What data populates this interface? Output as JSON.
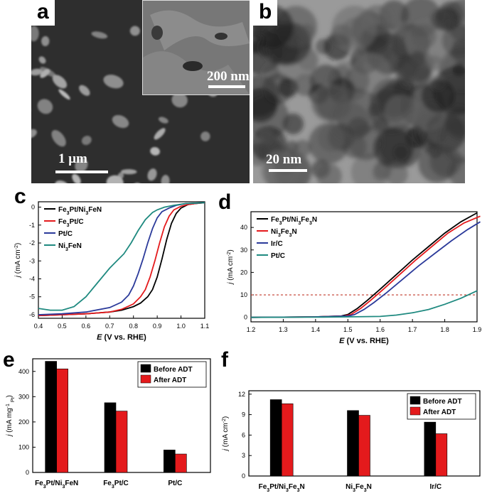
{
  "figure": {
    "panels": {
      "a": {
        "label": "a",
        "scale_main": "1 μm",
        "scale_inset": "200 nm"
      },
      "b": {
        "label": "b",
        "scale": "20 nm"
      },
      "c": {
        "label": "c"
      },
      "d": {
        "label": "d"
      },
      "e": {
        "label": "e"
      },
      "f": {
        "label": "f"
      }
    }
  },
  "chart_data": [
    {
      "id": "c",
      "type": "line",
      "xlabel": "E (V vs. RHE)",
      "ylabel": "j (mA cm⁻²)",
      "xlim": [
        0.4,
        1.1
      ],
      "ylim": [
        -6.2,
        0.3
      ],
      "xticks": [
        "0.4",
        "0.5",
        "0.6",
        "0.7",
        "0.8",
        "0.9",
        "1.0",
        "1.1"
      ],
      "yticks": [
        "0",
        "-1",
        "-2",
        "-3",
        "-4",
        "-5",
        "-6"
      ],
      "legend_position": "top-left",
      "series": [
        {
          "name": "Fe3Pt/Ni3FeN",
          "color": "#000000",
          "x": [
            0.4,
            0.5,
            0.6,
            0.7,
            0.75,
            0.8,
            0.83,
            0.86,
            0.88,
            0.9,
            0.92,
            0.94,
            0.96,
            0.98,
            1.0,
            1.03,
            1.06,
            1.1
          ],
          "y": [
            -6.05,
            -6.0,
            -5.95,
            -5.85,
            -5.75,
            -5.55,
            -5.35,
            -5.0,
            -4.6,
            -3.9,
            -2.9,
            -1.8,
            -0.9,
            -0.35,
            -0.05,
            0.15,
            0.2,
            0.25
          ]
        },
        {
          "name": "Fe3Pt/C",
          "color": "#e41a1c",
          "x": [
            0.4,
            0.5,
            0.6,
            0.7,
            0.75,
            0.8,
            0.83,
            0.85,
            0.87,
            0.89,
            0.91,
            0.93,
            0.95,
            0.97,
            1.0,
            1.03,
            1.06,
            1.1
          ],
          "y": [
            -6.05,
            -6.0,
            -5.95,
            -5.85,
            -5.7,
            -5.4,
            -5.0,
            -4.6,
            -3.9,
            -3.0,
            -2.0,
            -1.1,
            -0.5,
            -0.15,
            0.05,
            0.15,
            0.2,
            0.25
          ]
        },
        {
          "name": "Pt/C",
          "color": "#2b3a9a",
          "x": [
            0.4,
            0.5,
            0.6,
            0.7,
            0.75,
            0.78,
            0.8,
            0.82,
            0.84,
            0.86,
            0.88,
            0.9,
            0.92,
            0.95,
            0.98,
            1.02,
            1.06,
            1.1
          ],
          "y": [
            -6.0,
            -5.95,
            -5.85,
            -5.6,
            -5.3,
            -4.9,
            -4.4,
            -3.7,
            -2.9,
            -2.0,
            -1.2,
            -0.6,
            -0.25,
            -0.05,
            0.1,
            0.2,
            0.22,
            0.25
          ]
        },
        {
          "name": "Ni3FeN",
          "color": "#1f8a80",
          "x": [
            0.4,
            0.45,
            0.5,
            0.55,
            0.6,
            0.65,
            0.7,
            0.73,
            0.76,
            0.79,
            0.82,
            0.85,
            0.88,
            0.9,
            0.93,
            0.97,
            1.02,
            1.1
          ],
          "y": [
            -5.65,
            -5.75,
            -5.75,
            -5.55,
            -5.0,
            -4.2,
            -3.4,
            -3.0,
            -2.6,
            -2.0,
            -1.3,
            -0.7,
            -0.3,
            -0.15,
            0.0,
            0.1,
            0.2,
            0.25
          ]
        }
      ]
    },
    {
      "id": "d",
      "type": "line",
      "xlabel": "E (V vs. RHE)",
      "ylabel": "j (mA cm⁻²)",
      "xlim": [
        1.2,
        1.9
      ],
      "ylim": [
        -2,
        47
      ],
      "xticks": [
        "1.2",
        "1.3",
        "1.4",
        "1.5",
        "1.6",
        "1.7",
        "1.8",
        "1.9"
      ],
      "yticks": [
        "0",
        "10",
        "20",
        "30",
        "40"
      ],
      "reference_line": 10,
      "legend_position": "top-left",
      "series": [
        {
          "name": "Fe3Pt/Ni3Fe3N",
          "color": "#000000",
          "x": [
            1.2,
            1.3,
            1.4,
            1.48,
            1.5,
            1.53,
            1.56,
            1.6,
            1.65,
            1.7,
            1.75,
            1.8,
            1.85,
            1.9
          ],
          "y": [
            0,
            0.1,
            0.2,
            0.6,
            1.3,
            4.0,
            7.5,
            12.5,
            19.0,
            25.5,
            31.5,
            37.5,
            42.5,
            46.5
          ]
        },
        {
          "name": "Ni3Fe3N",
          "color": "#e41a1c",
          "x": [
            1.2,
            1.3,
            1.4,
            1.49,
            1.51,
            1.54,
            1.57,
            1.61,
            1.66,
            1.71,
            1.76,
            1.81,
            1.86,
            1.91
          ],
          "y": [
            0,
            0.1,
            0.2,
            0.6,
            1.3,
            4.0,
            7.5,
            12.5,
            19.0,
            25.5,
            31.5,
            37.5,
            42.0,
            45.0
          ]
        },
        {
          "name": "Ir/C",
          "color": "#2b3a9a",
          "x": [
            1.2,
            1.3,
            1.4,
            1.5,
            1.52,
            1.55,
            1.58,
            1.62,
            1.67,
            1.72,
            1.77,
            1.82,
            1.87,
            1.91
          ],
          "y": [
            0,
            0.1,
            0.2,
            0.6,
            1.2,
            3.5,
            6.5,
            11.0,
            17.0,
            23.0,
            28.5,
            34.0,
            39.0,
            42.5
          ]
        },
        {
          "name": "Pt/C",
          "color": "#1f8a80",
          "x": [
            1.2,
            1.4,
            1.5,
            1.6,
            1.65,
            1.7,
            1.75,
            1.8,
            1.85,
            1.9
          ],
          "y": [
            0,
            0.1,
            0.2,
            0.4,
            1.0,
            2.0,
            3.5,
            5.8,
            8.5,
            11.8
          ]
        }
      ]
    },
    {
      "id": "e",
      "type": "bar",
      "ylabel": "j (mA mg⁻¹ Pt)",
      "ylim": [
        0,
        450
      ],
      "yticks": [
        "0",
        "100",
        "200",
        "300",
        "400"
      ],
      "categories": [
        "Fe3Pt/Ni3FeN",
        "Fe3Pt/C",
        "Pt/C"
      ],
      "legend_position": "top-right",
      "series": [
        {
          "name": "Before ADT",
          "color": "#000000",
          "values": [
            440,
            276,
            89
          ]
        },
        {
          "name": "After ADT",
          "color": "#e41a1c",
          "values": [
            410,
            243,
            73
          ]
        }
      ]
    },
    {
      "id": "f",
      "type": "bar",
      "ylabel": "j (mA cm⁻²)",
      "ylim": [
        0,
        12.5
      ],
      "yticks": [
        "0",
        "3",
        "6",
        "9",
        "12"
      ],
      "categories": [
        "Fe3Pt/Ni3Fe3N",
        "Ni3Fe3N",
        "Ir/C"
      ],
      "legend_position": "top-right",
      "series": [
        {
          "name": "Before ADT",
          "color": "#000000",
          "values": [
            11.2,
            9.6,
            7.9
          ]
        },
        {
          "name": "After ADT",
          "color": "#e41a1c",
          "values": [
            10.6,
            8.9,
            6.2
          ]
        }
      ]
    }
  ]
}
